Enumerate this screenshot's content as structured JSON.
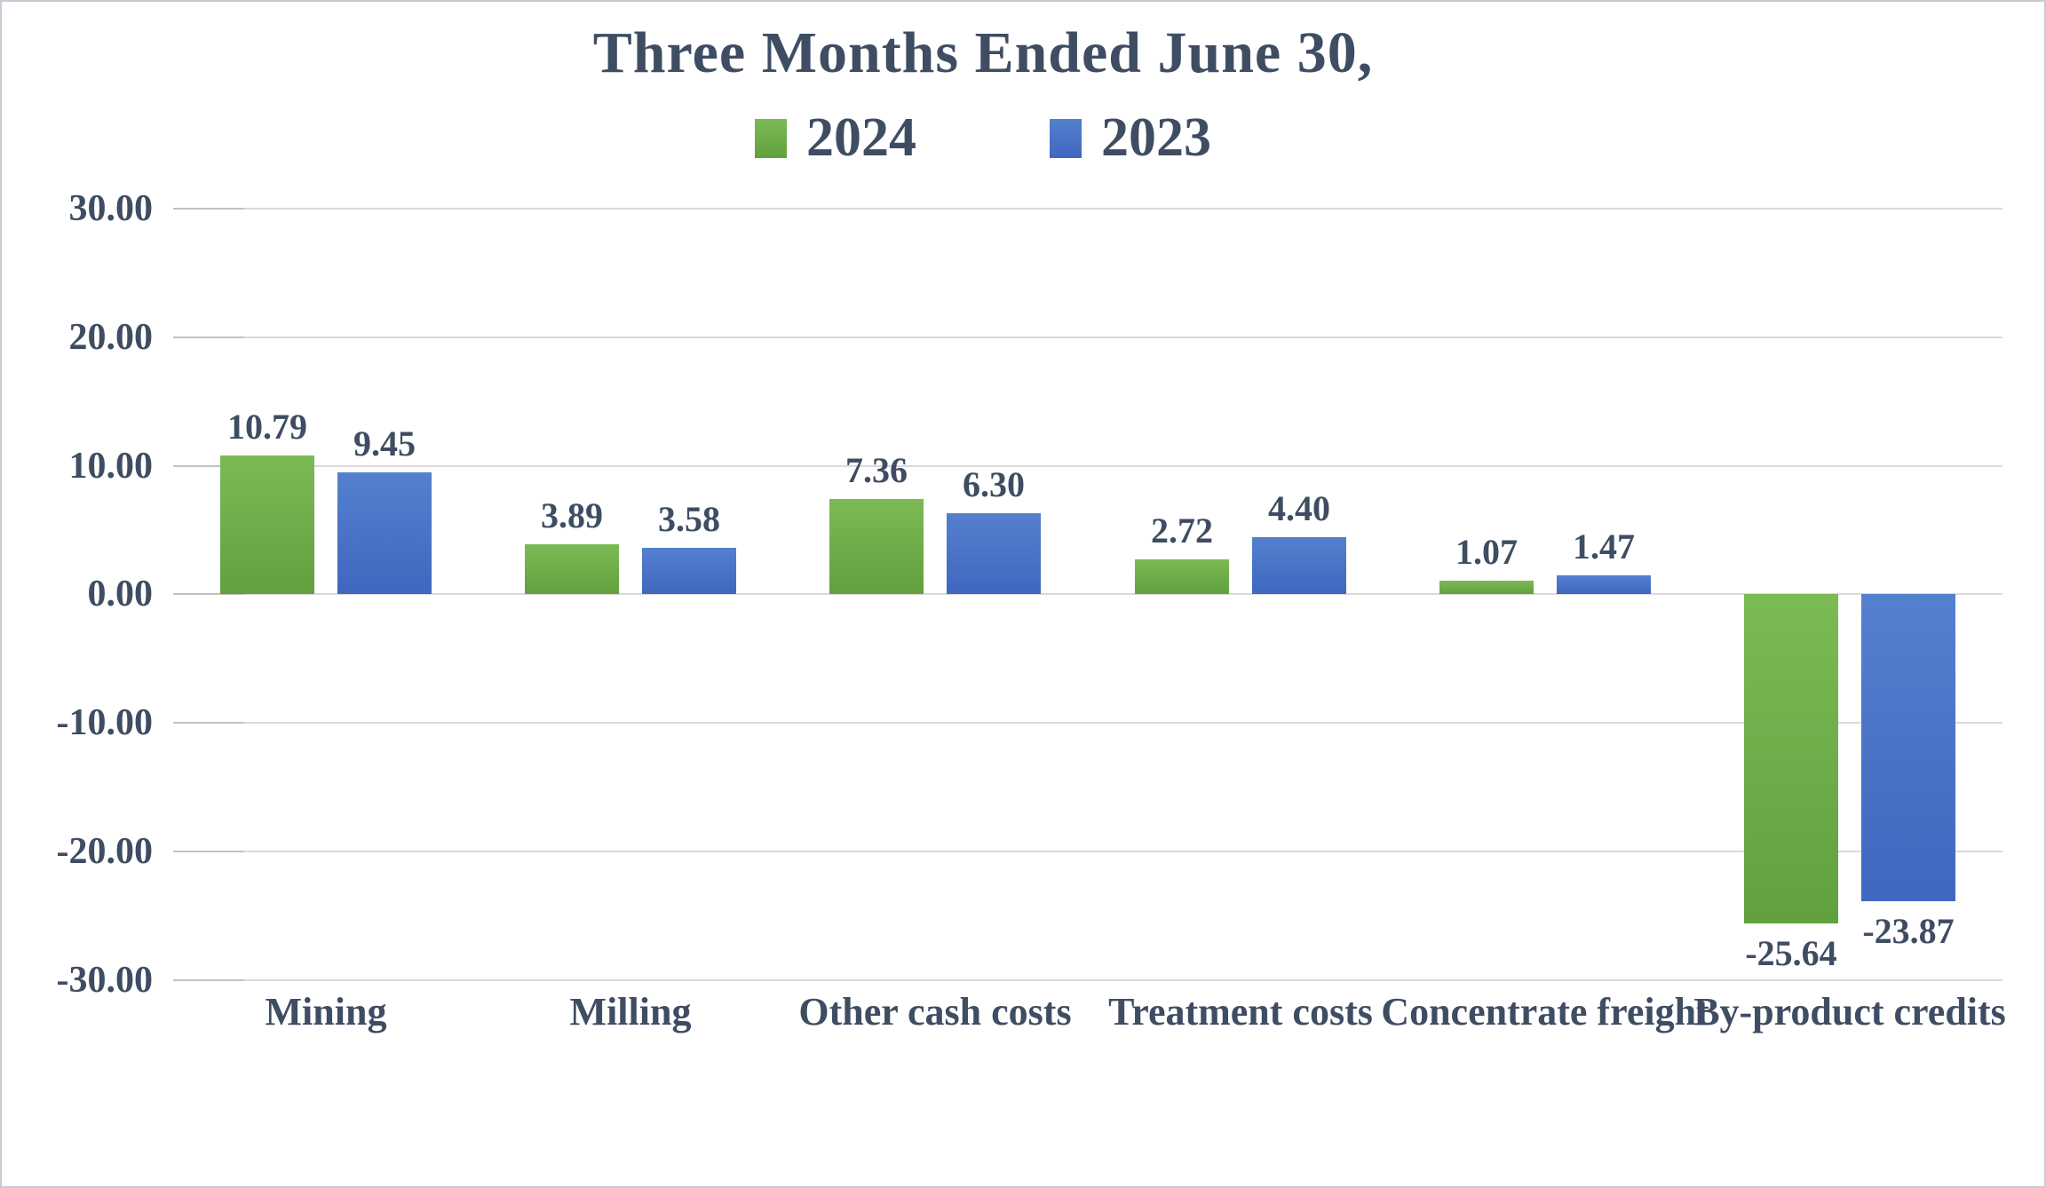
{
  "window": {
    "background": "#FFFFFF",
    "border_color": "#C7C9D5"
  },
  "chart_data": {
    "type": "bar",
    "title": "Three Months Ended June 30,",
    "categories": [
      "Mining",
      "Milling",
      "Other cash costs",
      "Treatment costs",
      "Concentrate freight",
      "By-product credits"
    ],
    "series": [
      {
        "name": "2024",
        "color": "#70AD47",
        "gradient_top": "#7CBA55",
        "gradient_bottom": "#61A03E",
        "values": [
          10.79,
          3.89,
          7.36,
          2.72,
          1.07,
          -25.64
        ]
      },
      {
        "name": "2023",
        "color": "#4472C4",
        "gradient_top": "#5580CE",
        "gradient_bottom": "#3F67BF",
        "values": [
          9.45,
          3.58,
          6.3,
          4.4,
          1.47,
          -23.87
        ]
      }
    ],
    "data_labels": {
      "shown": true,
      "decimals": 2
    },
    "y_axis": {
      "min": -30,
      "max": 30,
      "ticks": [
        30,
        20,
        10,
        0,
        -10,
        -20,
        -30
      ],
      "tick_labels": [
        "30.00",
        "20.00",
        "10.00",
        "0.00",
        "-10.00",
        "-20.00",
        "-30.00"
      ]
    },
    "grid": true,
    "legend_position": "top",
    "text_color": "#3F4D63",
    "grid_color": "#DADADA",
    "tick_color": "#C2C2C2"
  }
}
